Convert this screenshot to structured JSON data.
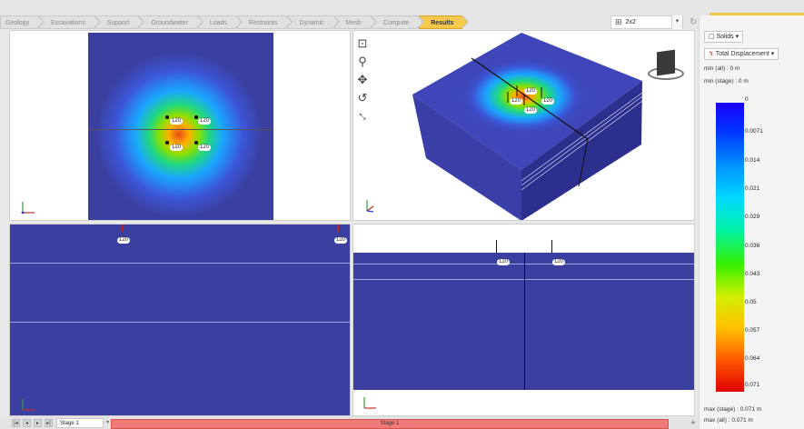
{
  "tabs": [
    "Geology",
    "Excavations",
    "Support",
    "Groundwater",
    "Loads",
    "Restraints",
    "Dynamic",
    "Mesh",
    "Compute",
    "Results"
  ],
  "active_tab": "Results",
  "view_layout": {
    "label": "2x2",
    "icon": "grid-layout-icon"
  },
  "toolbar_icons": [
    "zoom-box-icon",
    "zoom-icon",
    "pan-icon",
    "rotate-icon",
    "fit-view-icon"
  ],
  "load_label": "120",
  "panel": {
    "display_mode": "Solids",
    "result_type": "Total Displacement",
    "min_all": "min (all) :    0 m",
    "min_stage": "min (stage) : 0 m",
    "max_stage": "max (stage) : 0.071 m",
    "max_all": "max (all) :    0.071 m"
  },
  "legend": {
    "ticks": [
      "0",
      "0.0071",
      "0.014",
      "0.021",
      "0.029",
      "0.036",
      "0.043",
      "0.05",
      "0.057",
      "0.064",
      "0.071"
    ],
    "colors": [
      "#1a00ff",
      "#0095ff",
      "#00f2a6",
      "#36f000",
      "#ffc000",
      "#e10000"
    ]
  },
  "stage": {
    "selected": "Stage 1",
    "track_label": "Stage 1"
  },
  "colors": {
    "accent": "#f8c84f",
    "model_blue": "#3b3fa0",
    "stage_red": "#f07a7a"
  }
}
